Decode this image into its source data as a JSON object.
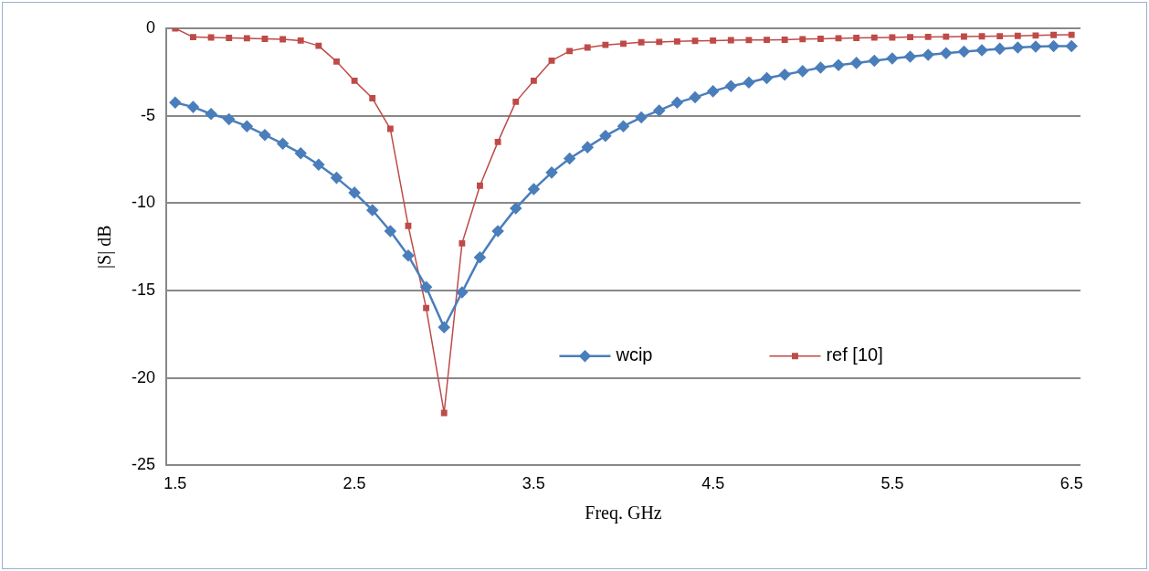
{
  "chart_data": {
    "type": "line",
    "xlabel": "Freq. GHz",
    "ylabel": "|S| dB",
    "x": [
      1.5,
      1.6,
      1.7,
      1.8,
      1.9,
      2.0,
      2.1,
      2.2,
      2.3,
      2.4,
      2.5,
      2.6,
      2.7,
      2.8,
      2.9,
      3.0,
      3.1,
      3.2,
      3.3,
      3.4,
      3.5,
      3.6,
      3.7,
      3.8,
      3.9,
      4.0,
      4.1,
      4.2,
      4.3,
      4.4,
      4.5,
      4.6,
      4.7,
      4.8,
      4.9,
      5.0,
      5.1,
      5.2,
      5.3,
      5.4,
      5.5,
      5.6,
      5.7,
      5.8,
      5.9,
      6.0,
      6.1,
      6.2,
      6.3,
      6.4,
      6.5
    ],
    "series": [
      {
        "name": "wcip",
        "color": "#4a7ebb",
        "marker": "diamond",
        "values": [
          -4.25,
          -4.5,
          -4.9,
          -5.2,
          -5.6,
          -6.1,
          -6.6,
          -7.15,
          -7.8,
          -8.55,
          -9.4,
          -10.4,
          -11.6,
          -13.0,
          -14.8,
          -17.1,
          -15.1,
          -13.1,
          -11.6,
          -10.3,
          -9.2,
          -8.25,
          -7.45,
          -6.8,
          -6.15,
          -5.6,
          -5.1,
          -4.7,
          -4.25,
          -3.95,
          -3.6,
          -3.3,
          -3.1,
          -2.85,
          -2.65,
          -2.45,
          -2.25,
          -2.1,
          -1.98,
          -1.85,
          -1.72,
          -1.62,
          -1.52,
          -1.42,
          -1.33,
          -1.25,
          -1.17,
          -1.1,
          -1.05,
          -1.02,
          -1.02
        ]
      },
      {
        "name": "ref [10]",
        "color": "#be4b48",
        "marker": "square",
        "values": [
          0,
          -0.5,
          -0.52,
          -0.55,
          -0.57,
          -0.6,
          -0.63,
          -0.7,
          -1.0,
          -1.9,
          -3.0,
          -4.0,
          -5.75,
          -11.3,
          -16.0,
          -22.0,
          -12.3,
          -9.0,
          -6.5,
          -4.2,
          -3.0,
          -1.85,
          -1.3,
          -1.1,
          -0.95,
          -0.88,
          -0.8,
          -0.78,
          -0.75,
          -0.72,
          -0.7,
          -0.68,
          -0.67,
          -0.66,
          -0.65,
          -0.62,
          -0.6,
          -0.57,
          -0.55,
          -0.53,
          -0.52,
          -0.5,
          -0.49,
          -0.48,
          -0.47,
          -0.46,
          -0.45,
          -0.43,
          -0.41,
          -0.38,
          -0.37
        ]
      }
    ],
    "xlim": [
      1.45,
      6.55
    ],
    "xticks": [
      1.5,
      2.5,
      3.5,
      4.5,
      5.5,
      6.5
    ],
    "ylim": [
      -25,
      0
    ],
    "yticks": [
      0,
      -5,
      -10,
      -15,
      -20,
      -25
    ],
    "grid": "y",
    "legend": "bottom",
    "line_style": "solid"
  }
}
